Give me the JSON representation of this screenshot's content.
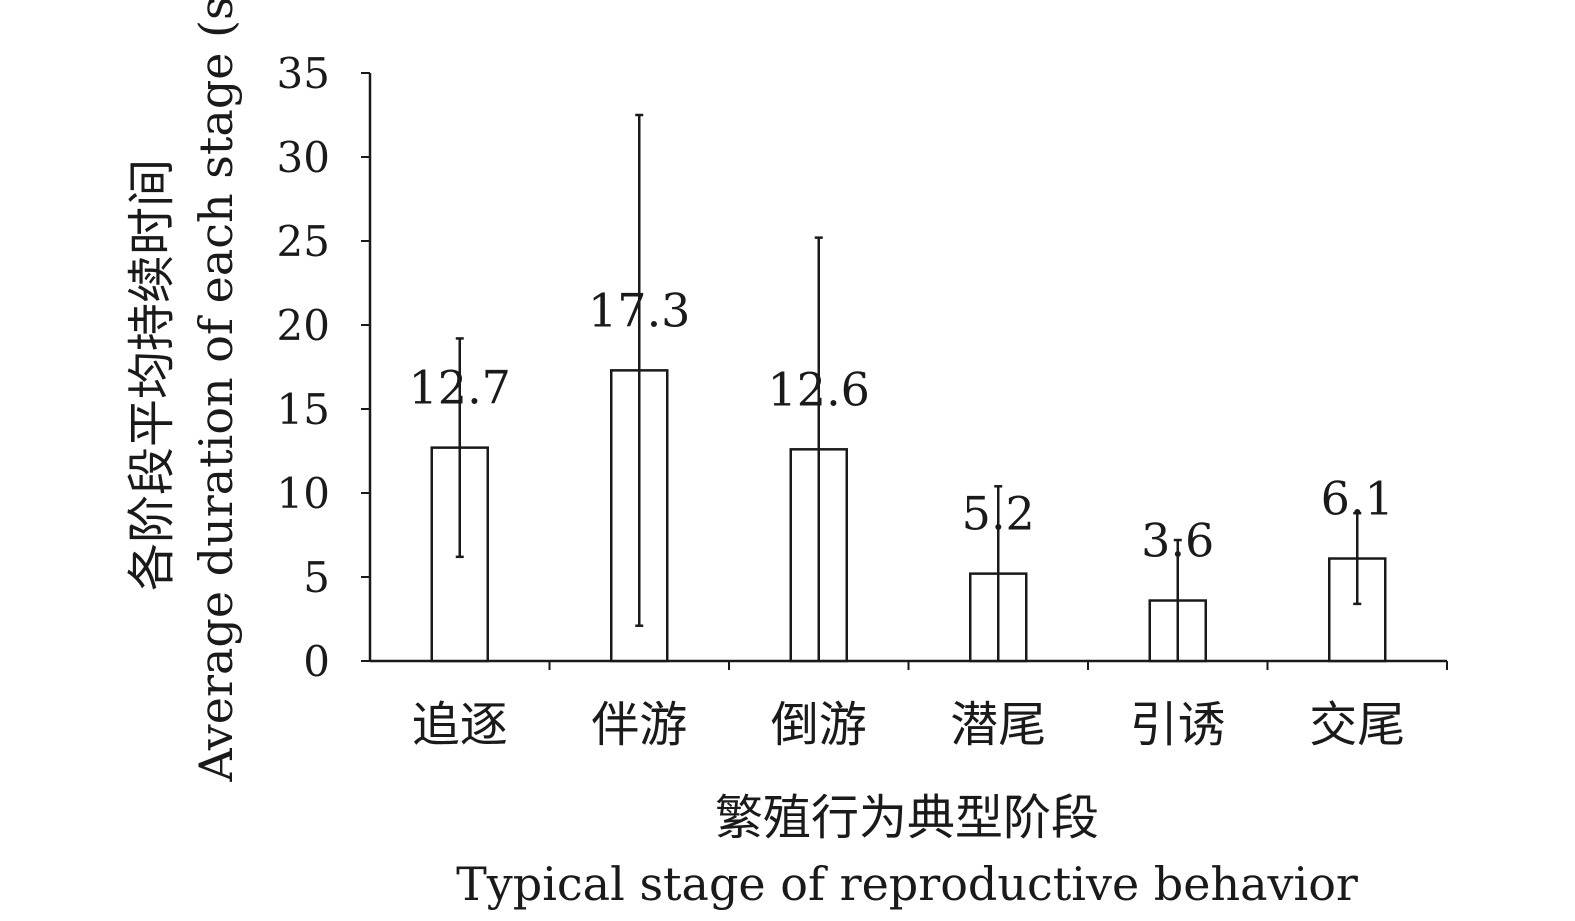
{
  "chart_data": {
    "type": "bar",
    "categories": [
      "追逐",
      "伴游",
      "倒游",
      "潜尾",
      "引诱",
      "交尾"
    ],
    "values": [
      12.7,
      17.3,
      12.6,
      5.2,
      3.6,
      6.1
    ],
    "value_labels": [
      "12.7",
      "17.3",
      "12.6",
      "5.2",
      "3.6",
      "6.1"
    ],
    "error_bars": [
      {
        "low": 6.2,
        "high": 19.2
      },
      {
        "low": 2.1,
        "high": 32.5
      },
      {
        "low": 0,
        "high": 25.2
      },
      {
        "low": 0,
        "high": 10.4
      },
      {
        "low": 0,
        "high": 7.2
      },
      {
        "low": 3.4,
        "high": 8.8
      }
    ],
    "yticks": [
      "0",
      "5",
      "10",
      "15",
      "20",
      "25",
      "30",
      "35"
    ],
    "ylim": [
      0,
      35
    ],
    "ylabel_cn": "各阶段平均持续时间",
    "ylabel_en": "Average duration of each stage (s)",
    "xlabel_cn": "繁殖行为典型阶段",
    "xlabel_en": "Typical stage of reproductive behavior",
    "grid": false,
    "bar_fill": "#ffffff",
    "stroke_color": "#1a1a1a"
  }
}
